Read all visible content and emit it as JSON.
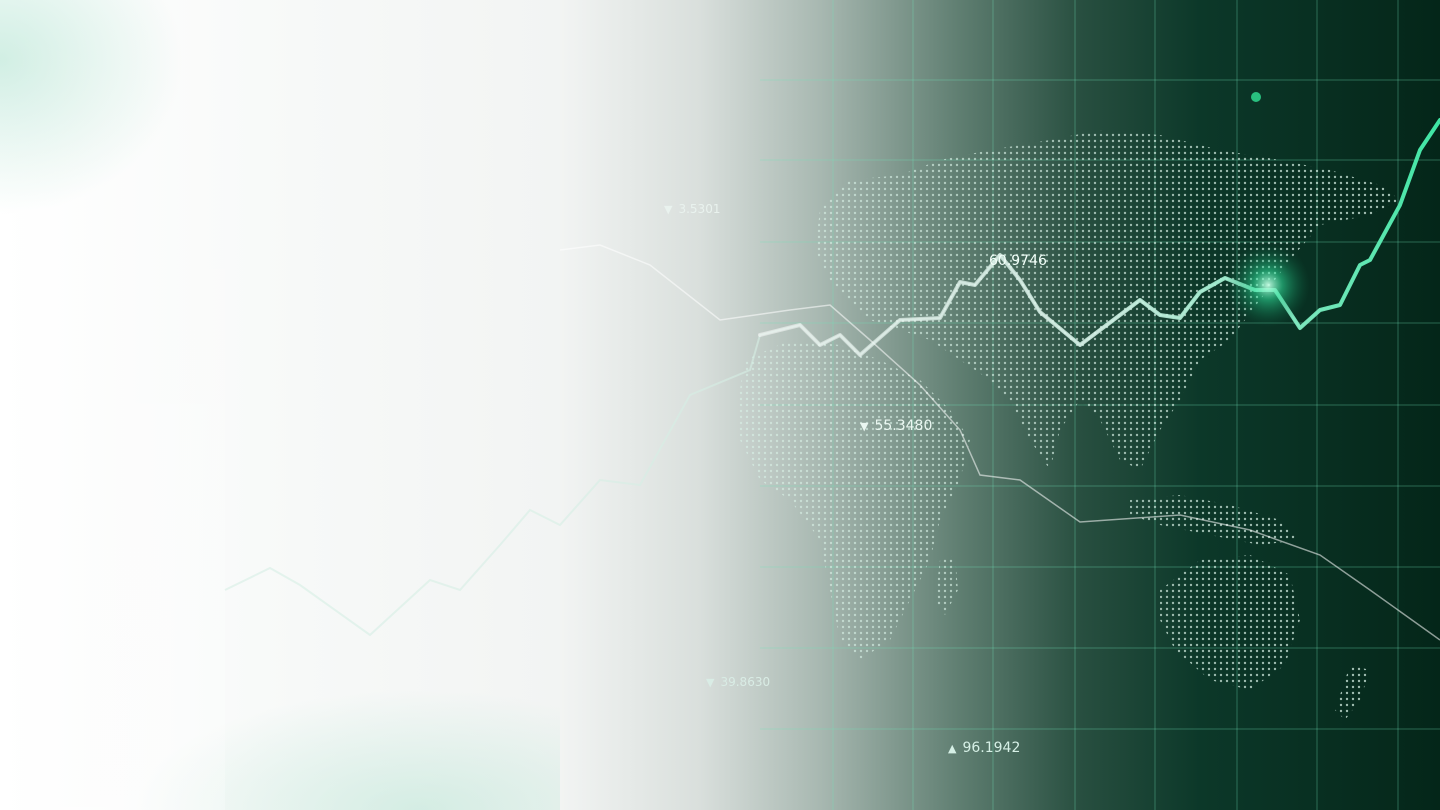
{
  "scene": {
    "description_tag": "financial-world-map-background",
    "accent_color": "#3ee0a0",
    "glow_color": "#1fd68a"
  },
  "labels": {
    "v1": {
      "text": "60.9746",
      "marker": ""
    },
    "v2": {
      "text": "55.3480",
      "marker": "▼"
    },
    "v3": {
      "text": "39.8630",
      "marker": "▼"
    },
    "v4": {
      "text": "96.1942",
      "marker": "▲"
    },
    "v5": {
      "text": "3.5301",
      "marker": "▼"
    }
  }
}
